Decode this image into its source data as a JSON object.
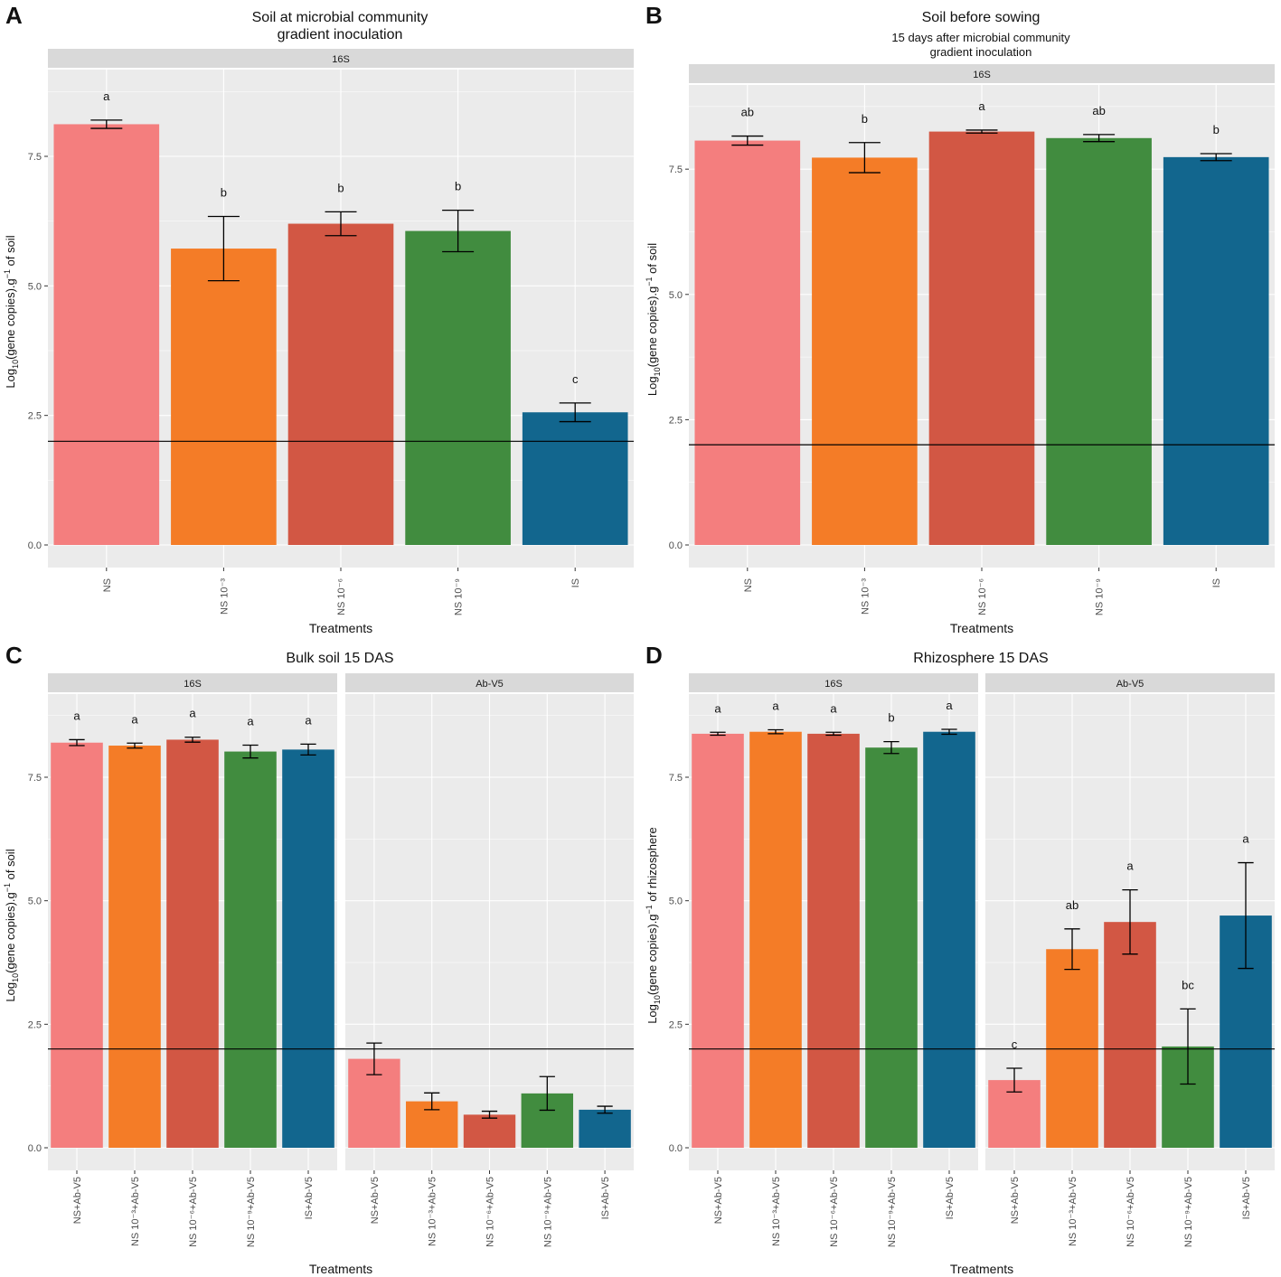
{
  "colors": {
    "panel_bg": "#ebebeb",
    "grid": "#ffffff",
    "strip_bg": "#d9d9d9",
    "ref_line": "#000000",
    "bars": [
      "#f47e7e",
      "#f47c27",
      "#d25744",
      "#418c3f",
      "#12668e"
    ]
  },
  "chart_data": [
    {
      "id": "A",
      "type": "bar",
      "panel_letter": "A",
      "title": "Soil at microbial community\ngradient inoculation",
      "subtitle": "",
      "xlabel": "Treatments",
      "ylabel": "Log10(gene copies).g−1 of soil",
      "ylim": [
        0,
        9.0
      ],
      "yticks": [
        "0.0",
        "2.5",
        "5.0",
        "7.5"
      ],
      "reference_line": 2.0,
      "facets": [
        {
          "strip": "16S",
          "categories": [
            "NS",
            "NS 10⁻³",
            "NS 10⁻⁶",
            "NS 10⁻⁹",
            "IS"
          ],
          "values": [
            8.12,
            5.72,
            6.2,
            6.06,
            2.56
          ],
          "errors": [
            0.08,
            0.62,
            0.23,
            0.4,
            0.18
          ],
          "letters": [
            "a",
            "b",
            "b",
            "b",
            "c"
          ]
        }
      ]
    },
    {
      "id": "B",
      "type": "bar",
      "panel_letter": "B",
      "title": "Soil before sowing",
      "subtitle": "15 days after microbial community\ngradient inoculation",
      "xlabel": "Treatments",
      "ylabel": "Log10(gene copies).g−1 of soil",
      "ylim": [
        0,
        9.0
      ],
      "yticks": [
        "0.0",
        "2.5",
        "5.0",
        "7.5"
      ],
      "reference_line": 2.0,
      "facets": [
        {
          "strip": "16S",
          "categories": [
            "NS",
            "NS 10⁻³",
            "NS 10⁻⁶",
            "NS 10⁻⁹",
            "IS"
          ],
          "values": [
            8.07,
            7.73,
            8.25,
            8.12,
            7.74
          ],
          "errors": [
            0.09,
            0.3,
            0.03,
            0.07,
            0.07
          ],
          "letters": [
            "ab",
            "b",
            "a",
            "ab",
            "b"
          ]
        }
      ]
    },
    {
      "id": "C",
      "type": "bar",
      "panel_letter": "C",
      "title": "Bulk soil 15 DAS",
      "subtitle": "",
      "xlabel": "Treatments",
      "ylabel": "Log10(gene copies).g−1 of soil",
      "ylim": [
        0,
        9.0
      ],
      "yticks": [
        "0.0",
        "2.5",
        "5.0",
        "7.5"
      ],
      "reference_line": 2.0,
      "facets": [
        {
          "strip": "16S",
          "categories": [
            "NS+Ab-V5",
            "NS 10⁻³+Ab-V5",
            "NS 10⁻⁶+Ab-V5",
            "NS 10⁻⁹+Ab-V5",
            "IS+Ab-V5"
          ],
          "values": [
            8.2,
            8.14,
            8.26,
            8.02,
            8.06
          ],
          "errors": [
            0.06,
            0.05,
            0.05,
            0.13,
            0.11
          ],
          "letters": [
            "a",
            "a",
            "a",
            "a",
            "a"
          ]
        },
        {
          "strip": "Ab-V5",
          "categories": [
            "NS+Ab-V5",
            "NS 10⁻³+Ab-V5",
            "NS 10⁻⁶+Ab-V5",
            "NS 10⁻⁹+Ab-V5",
            "IS+Ab-V5"
          ],
          "values": [
            1.8,
            0.94,
            0.67,
            1.1,
            0.77
          ],
          "errors": [
            0.32,
            0.17,
            0.07,
            0.34,
            0.07
          ],
          "letters": [
            "",
            "",
            "",
            "",
            ""
          ]
        }
      ]
    },
    {
      "id": "D",
      "type": "bar",
      "panel_letter": "D",
      "title": "Rhizosphere 15 DAS",
      "subtitle": "",
      "xlabel": "Treatments",
      "ylabel": "Log10(gene copies).g−1 of rhizosphere",
      "ylim": [
        0,
        9.0
      ],
      "yticks": [
        "0.0",
        "2.5",
        "5.0",
        "7.5"
      ],
      "reference_line": 2.0,
      "facets": [
        {
          "strip": "16S",
          "categories": [
            "NS+Ab-V5",
            "NS 10⁻³+Ab-V5",
            "NS 10⁻⁶+Ab-V5",
            "NS 10⁻⁹+Ab-V5",
            "IS+Ab-V5"
          ],
          "values": [
            8.38,
            8.42,
            8.38,
            8.1,
            8.42
          ],
          "errors": [
            0.03,
            0.04,
            0.03,
            0.12,
            0.05
          ],
          "letters": [
            "a",
            "a",
            "a",
            "b",
            "a"
          ]
        },
        {
          "strip": "Ab-V5",
          "categories": [
            "NS+Ab-V5",
            "NS 10⁻³+Ab-V5",
            "NS 10⁻⁶+Ab-V5",
            "NS 10⁻⁹+Ab-V5",
            "IS+Ab-V5"
          ],
          "values": [
            1.37,
            4.02,
            4.57,
            2.05,
            4.7
          ],
          "errors": [
            0.24,
            0.41,
            0.65,
            0.76,
            1.07
          ],
          "letters": [
            "c",
            "ab",
            "a",
            "bc",
            "a"
          ]
        }
      ]
    }
  ]
}
